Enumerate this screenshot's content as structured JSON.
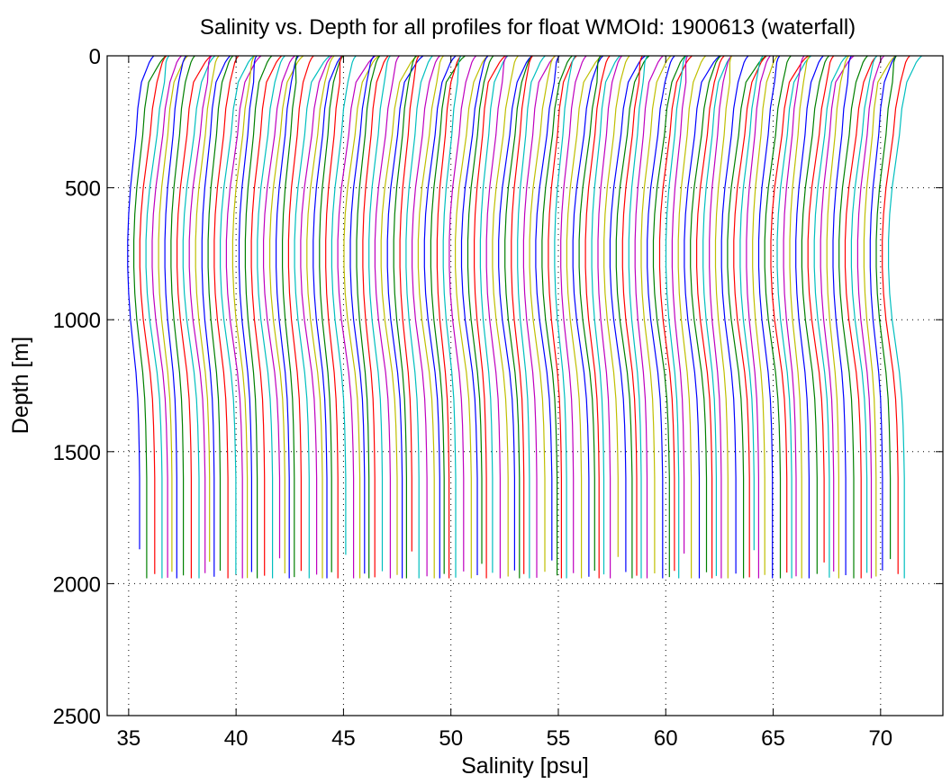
{
  "chart_data": {
    "type": "line",
    "title": "Salinity vs. Depth for all profiles for float WMOId: 1900613 (waterfall)",
    "xlabel": "Salinity [psu]",
    "ylabel": "Depth [m]",
    "xlim": [
      34,
      72.9
    ],
    "ylim": [
      0,
      2500
    ],
    "y_reversed": true,
    "xticks": [
      35,
      40,
      45,
      50,
      55,
      60,
      65,
      70
    ],
    "yticks": [
      0,
      500,
      1000,
      1500,
      2000,
      2500
    ],
    "grid": "dotted",
    "legend": "none",
    "colors": [
      "#0000ff",
      "#008000",
      "#ff0000",
      "#00bfbf",
      "#bf00bf",
      "#bfbf00"
    ],
    "profile_count": 124,
    "first_profile_offset_psu": 35,
    "offset_step_psu": 0.288,
    "profile_depth_m": [
      0,
      10,
      25,
      50,
      75,
      100,
      150,
      200,
      300,
      400,
      500,
      600,
      700,
      800,
      900,
      1000,
      1100,
      1200,
      1300,
      1400,
      1500,
      1600,
      1700,
      1800,
      1900,
      1980
    ],
    "salinity_anomaly_psu": [
      1.2,
      1.1,
      1.0,
      0.9,
      0.8,
      0.7,
      0.6,
      0.5,
      0.4,
      0.25,
      0.1,
      0.0,
      -0.05,
      -0.05,
      0.0,
      0.1,
      0.25,
      0.4,
      0.5,
      0.55,
      0.58,
      0.6,
      0.6,
      0.6,
      0.6,
      0.6
    ]
  }
}
